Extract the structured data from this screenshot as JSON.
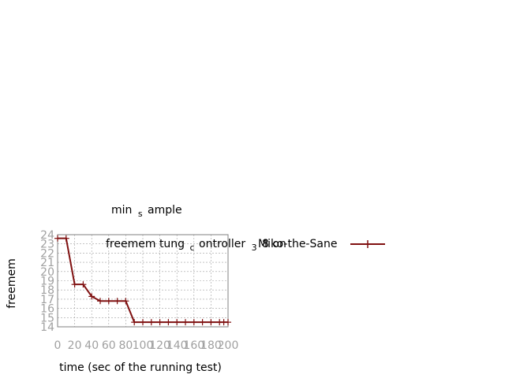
{
  "chart_data": {
    "type": "line",
    "title": {
      "main_prefix": "min",
      "main_sub": "s",
      "main_suffix": "ample"
    },
    "xlabel": "time (sec of the running test)",
    "ylabel": "freemem",
    "xlim": [
      0,
      200
    ],
    "ylim": [
      14,
      24
    ],
    "x_ticks": [
      0,
      20,
      40,
      60,
      80,
      100,
      120,
      140,
      160,
      180,
      200
    ],
    "y_ticks": [
      14,
      15,
      16,
      17,
      18,
      19,
      20,
      21,
      22,
      23,
      24
    ],
    "grid": true,
    "legend_position": "top-right",
    "series": [
      {
        "name": {
          "part1": "freemem tung",
          "part1_sub": "c",
          "part2": "ontroller",
          "part2_sub": "3",
          "part3": "8 on",
          "part4": "Miko-the-Sane"
        },
        "color": "#7f1010",
        "marker": "plus",
        "x": [
          0,
          10,
          20,
          30,
          40,
          50,
          60,
          70,
          80,
          90,
          100,
          110,
          120,
          130,
          140,
          150,
          160,
          170,
          180,
          190,
          195,
          200
        ],
        "y": [
          23.6,
          23.6,
          18.6,
          18.6,
          17.3,
          16.8,
          16.8,
          16.8,
          16.8,
          14.5,
          14.5,
          14.5,
          14.5,
          14.5,
          14.5,
          14.5,
          14.5,
          14.5,
          14.5,
          14.5,
          14.5,
          14.5
        ]
      }
    ]
  }
}
